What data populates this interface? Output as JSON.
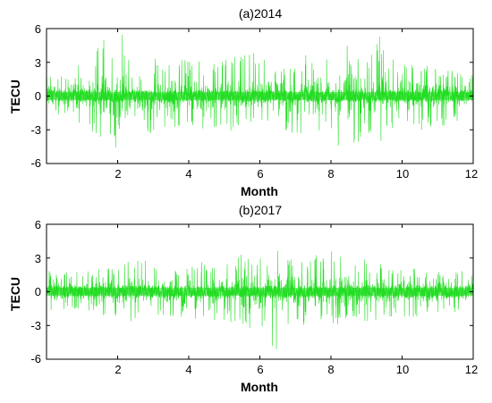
{
  "chart_data": [
    {
      "type": "line",
      "title": "(a)2014",
      "xlabel": "Month",
      "ylabel": "TECU",
      "xlim": [
        0,
        12
      ],
      "ylim": [
        -6,
        6
      ],
      "x_ticks": [
        "2",
        "4",
        "6",
        "8",
        "10",
        "12"
      ],
      "y_ticks": [
        "6",
        "3",
        "0",
        "-3",
        "-6"
      ],
      "grid": false,
      "series_color": "#22dd22",
      "envelope": {
        "x": [
          0,
          1,
          1.8,
          2.2,
          2.6,
          3,
          4,
          5,
          6,
          6.5,
          7,
          8,
          8.5,
          9,
          9.3,
          9.6,
          10,
          11,
          12
        ],
        "upper": [
          2.2,
          2.8,
          5.8,
          5.5,
          5.2,
          3.5,
          3.2,
          3.5,
          4.0,
          3.2,
          3.6,
          4.2,
          4.8,
          3.5,
          6.0,
          3.2,
          3.4,
          2.4,
          2.0
        ],
        "lower": [
          -2.0,
          -2.6,
          -4.5,
          -4.8,
          -4.2,
          -3.2,
          -3.0,
          -3.2,
          -2.8,
          -3.0,
          -3.6,
          -4.0,
          -5.8,
          -3.5,
          -4.6,
          -3.0,
          -3.2,
          -3.0,
          -2.2
        ]
      }
    },
    {
      "type": "line",
      "title": "(b)2017",
      "xlabel": "Month",
      "ylabel": "TECU",
      "xlim": [
        0,
        12
      ],
      "ylim": [
        -6,
        6
      ],
      "x_ticks": [
        "2",
        "4",
        "6",
        "8",
        "10",
        "12"
      ],
      "y_ticks": [
        "6",
        "3",
        "0",
        "-3",
        "-6"
      ],
      "grid": false,
      "series_color": "#22dd22",
      "envelope": {
        "x": [
          0,
          1,
          2,
          2.5,
          3,
          4,
          5,
          5.5,
          6,
          6.5,
          7,
          8,
          8.5,
          9,
          10,
          11,
          12
        ],
        "upper": [
          2.0,
          1.8,
          2.5,
          3.2,
          2.5,
          2.4,
          3.0,
          3.6,
          3.4,
          4.2,
          3.0,
          3.6,
          3.5,
          3.0,
          2.2,
          2.0,
          1.8
        ],
        "lower": [
          -1.8,
          -1.6,
          -2.4,
          -2.8,
          -2.2,
          -2.4,
          -2.6,
          -3.2,
          -3.4,
          -6.2,
          -3.0,
          -2.8,
          -3.2,
          -2.6,
          -2.4,
          -2.0,
          -1.6
        ]
      }
    }
  ]
}
